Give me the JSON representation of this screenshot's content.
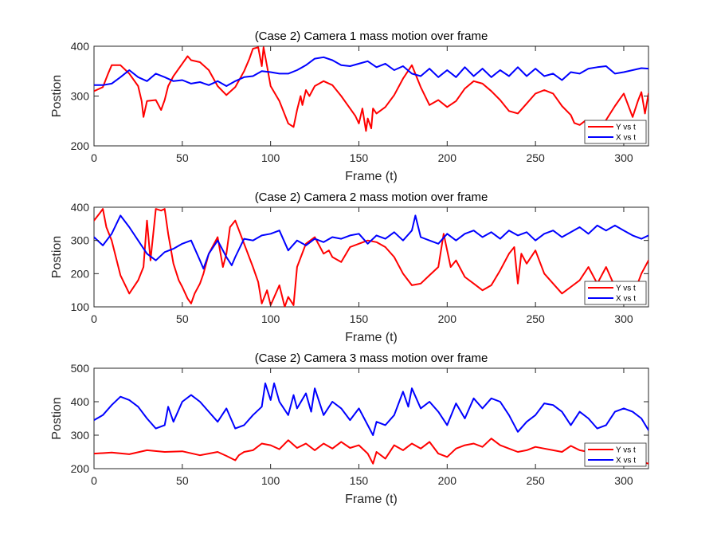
{
  "chart_data": [
    {
      "type": "line",
      "title": "(Case 2) Camera 1 mass motion over frame",
      "xlabel": "Frame (t)",
      "ylabel": "Postion",
      "xlim": [
        0,
        314
      ],
      "ylim": [
        200,
        400
      ],
      "xticks": [
        0,
        50,
        100,
        150,
        200,
        250,
        300
      ],
      "yticks": [
        200,
        300,
        400
      ],
      "legend": "bottom-right",
      "series": [
        {
          "name": "Y vs t",
          "color": "#ff0000",
          "x": [
            0,
            5,
            8,
            10,
            15,
            20,
            25,
            27,
            28,
            30,
            35,
            38,
            40,
            42,
            45,
            50,
            53,
            55,
            60,
            65,
            70,
            75,
            80,
            85,
            88,
            90,
            93,
            95,
            96,
            98,
            100,
            105,
            110,
            113,
            115,
            117,
            118,
            120,
            122,
            125,
            130,
            135,
            140,
            145,
            148,
            150,
            152,
            154,
            155,
            157,
            158,
            160,
            165,
            170,
            175,
            180,
            185,
            190,
            195,
            200,
            205,
            210,
            215,
            220,
            225,
            230,
            235,
            240,
            245,
            250,
            255,
            260,
            263,
            265,
            270,
            272,
            275,
            278,
            280,
            285,
            290,
            295,
            298,
            300,
            305,
            308,
            310,
            312,
            314
          ],
          "y": [
            310,
            318,
            345,
            362,
            362,
            345,
            320,
            290,
            258,
            290,
            292,
            272,
            292,
            320,
            340,
            365,
            380,
            372,
            368,
            352,
            320,
            302,
            318,
            350,
            375,
            395,
            398,
            360,
            398,
            360,
            320,
            290,
            245,
            238,
            272,
            300,
            282,
            312,
            300,
            320,
            330,
            322,
            300,
            275,
            260,
            245,
            275,
            230,
            255,
            235,
            275,
            265,
            278,
            302,
            335,
            362,
            318,
            282,
            292,
            278,
            290,
            315,
            330,
            325,
            310,
            292,
            270,
            265,
            285,
            305,
            312,
            305,
            290,
            280,
            262,
            246,
            242,
            250,
            240,
            222,
            252,
            280,
            295,
            305,
            258,
            290,
            308,
            265,
            305
          ]
        },
        {
          "name": "X vs t",
          "color": "#0000ff",
          "x": [
            0,
            5,
            10,
            15,
            20,
            25,
            30,
            35,
            40,
            45,
            50,
            55,
            60,
            65,
            70,
            75,
            80,
            85,
            90,
            95,
            100,
            105,
            110,
            115,
            120,
            125,
            130,
            135,
            140,
            145,
            150,
            155,
            160,
            165,
            170,
            175,
            180,
            185,
            190,
            195,
            200,
            205,
            210,
            215,
            220,
            225,
            230,
            235,
            240,
            245,
            250,
            255,
            260,
            265,
            270,
            275,
            280,
            285,
            290,
            295,
            300,
            305,
            310,
            314
          ],
          "y": [
            322,
            322,
            325,
            338,
            352,
            338,
            330,
            345,
            338,
            330,
            332,
            325,
            328,
            322,
            330,
            320,
            330,
            338,
            340,
            350,
            348,
            345,
            345,
            352,
            362,
            375,
            378,
            372,
            362,
            360,
            365,
            370,
            358,
            365,
            352,
            360,
            345,
            340,
            355,
            338,
            352,
            338,
            358,
            340,
            355,
            338,
            352,
            340,
            358,
            340,
            355,
            340,
            345,
            332,
            348,
            345,
            355,
            358,
            360,
            345,
            348,
            352,
            356,
            355
          ]
        }
      ]
    },
    {
      "type": "line",
      "title": "(Case 2) Camera 2 mass motion over frame",
      "xlabel": "Frame (t)",
      "ylabel": "Postion",
      "xlim": [
        0,
        314
      ],
      "ylim": [
        100,
        400
      ],
      "xticks": [
        0,
        50,
        100,
        150,
        200,
        250,
        300
      ],
      "yticks": [
        100,
        200,
        300,
        400
      ],
      "legend": "bottom-right",
      "series": [
        {
          "name": "Y vs t",
          "color": "#ff0000",
          "x": [
            0,
            3,
            5,
            7,
            10,
            15,
            20,
            25,
            28,
            30,
            32,
            35,
            38,
            40,
            42,
            45,
            48,
            50,
            53,
            55,
            57,
            60,
            62,
            65,
            70,
            73,
            75,
            77,
            80,
            85,
            90,
            93,
            95,
            98,
            100,
            105,
            108,
            110,
            113,
            115,
            120,
            125,
            130,
            133,
            135,
            140,
            145,
            150,
            155,
            160,
            165,
            170,
            175,
            180,
            185,
            190,
            195,
            198,
            200,
            202,
            205,
            210,
            215,
            220,
            225,
            230,
            235,
            238,
            240,
            242,
            245,
            250,
            255,
            260,
            265,
            270,
            275,
            280,
            285,
            290,
            295,
            298,
            300,
            305,
            310,
            314
          ],
          "y": [
            360,
            380,
            395,
            340,
            300,
            195,
            140,
            180,
            220,
            360,
            240,
            395,
            390,
            395,
            320,
            230,
            180,
            160,
            125,
            110,
            140,
            170,
            200,
            260,
            310,
            220,
            260,
            340,
            360,
            290,
            220,
            175,
            110,
            150,
            105,
            165,
            100,
            130,
            105,
            220,
            290,
            310,
            260,
            270,
            250,
            235,
            280,
            290,
            300,
            295,
            280,
            250,
            200,
            165,
            170,
            195,
            220,
            320,
            270,
            220,
            240,
            190,
            170,
            150,
            165,
            210,
            260,
            280,
            170,
            260,
            230,
            270,
            200,
            170,
            140,
            160,
            180,
            220,
            170,
            220,
            160,
            110,
            120,
            130,
            200,
            240
          ]
        },
        {
          "name": "X vs t",
          "color": "#0000ff",
          "x": [
            0,
            5,
            10,
            15,
            20,
            25,
            30,
            35,
            40,
            45,
            50,
            55,
            60,
            62,
            65,
            70,
            75,
            78,
            80,
            85,
            90,
            95,
            100,
            105,
            110,
            115,
            120,
            125,
            130,
            135,
            140,
            145,
            150,
            155,
            160,
            165,
            170,
            175,
            180,
            182,
            185,
            190,
            195,
            200,
            205,
            210,
            215,
            220,
            225,
            230,
            235,
            240,
            245,
            250,
            255,
            260,
            265,
            270,
            275,
            280,
            285,
            290,
            295,
            300,
            305,
            310,
            314
          ],
          "y": [
            310,
            285,
            320,
            375,
            340,
            300,
            260,
            240,
            265,
            275,
            290,
            300,
            240,
            215,
            260,
            300,
            250,
            225,
            250,
            305,
            300,
            315,
            320,
            330,
            270,
            300,
            285,
            305,
            295,
            310,
            305,
            315,
            320,
            290,
            315,
            305,
            325,
            300,
            330,
            375,
            310,
            300,
            290,
            320,
            300,
            320,
            330,
            310,
            325,
            305,
            330,
            315,
            325,
            300,
            320,
            330,
            310,
            325,
            340,
            320,
            345,
            330,
            345,
            330,
            315,
            305,
            315
          ]
        }
      ]
    },
    {
      "type": "line",
      "title": "(Case 2) Camera 3 mass motion over frame",
      "xlabel": "Frame (t)",
      "ylabel": "Postion",
      "xlim": [
        0,
        314
      ],
      "ylim": [
        200,
        500
      ],
      "xticks": [
        0,
        50,
        100,
        150,
        200,
        250,
        300
      ],
      "yticks": [
        200,
        300,
        400,
        500
      ],
      "legend": "bottom-right",
      "series": [
        {
          "name": "Y vs t",
          "color": "#ff0000",
          "x": [
            0,
            10,
            20,
            30,
            40,
            50,
            60,
            70,
            75,
            80,
            82,
            85,
            90,
            95,
            100,
            105,
            110,
            115,
            120,
            125,
            130,
            135,
            140,
            145,
            150,
            155,
            158,
            160,
            165,
            170,
            175,
            180,
            185,
            190,
            195,
            200,
            205,
            210,
            215,
            220,
            225,
            230,
            235,
            240,
            245,
            250,
            255,
            260,
            265,
            270,
            275,
            280,
            285,
            290,
            295,
            300,
            305,
            310,
            314
          ],
          "y": [
            245,
            248,
            243,
            255,
            250,
            252,
            240,
            250,
            238,
            225,
            240,
            250,
            255,
            275,
            270,
            258,
            285,
            262,
            275,
            255,
            275,
            260,
            280,
            262,
            270,
            245,
            215,
            250,
            230,
            270,
            255,
            275,
            260,
            280,
            245,
            235,
            260,
            270,
            275,
            265,
            290,
            270,
            260,
            250,
            255,
            265,
            260,
            255,
            250,
            268,
            255,
            250,
            250,
            235,
            225,
            245,
            235,
            220,
            215
          ]
        },
        {
          "name": "X vs t",
          "color": "#0000ff",
          "x": [
            0,
            5,
            10,
            15,
            20,
            25,
            30,
            35,
            40,
            42,
            45,
            50,
            55,
            60,
            65,
            70,
            75,
            80,
            85,
            90,
            95,
            97,
            100,
            102,
            105,
            110,
            113,
            115,
            120,
            123,
            125,
            130,
            135,
            140,
            145,
            150,
            155,
            158,
            160,
            165,
            170,
            175,
            178,
            180,
            185,
            190,
            195,
            200,
            205,
            210,
            215,
            220,
            225,
            230,
            235,
            240,
            245,
            250,
            255,
            260,
            265,
            270,
            275,
            280,
            285,
            290,
            295,
            300,
            305,
            310,
            314
          ],
          "y": [
            345,
            360,
            390,
            415,
            405,
            385,
            350,
            320,
            330,
            385,
            340,
            400,
            420,
            400,
            370,
            340,
            380,
            320,
            330,
            360,
            385,
            455,
            405,
            455,
            400,
            360,
            420,
            380,
            425,
            370,
            440,
            360,
            400,
            380,
            345,
            380,
            330,
            300,
            340,
            330,
            360,
            430,
            385,
            440,
            380,
            400,
            370,
            330,
            395,
            350,
            410,
            380,
            410,
            400,
            360,
            310,
            340,
            360,
            395,
            390,
            370,
            330,
            370,
            350,
            320,
            330,
            370,
            380,
            370,
            350,
            315
          ]
        }
      ]
    }
  ]
}
